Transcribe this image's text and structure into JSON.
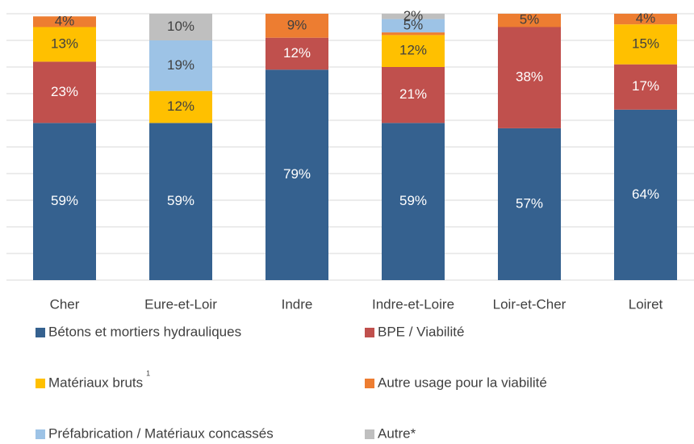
{
  "chart_data": {
    "type": "stacked_bar",
    "categories": [
      "Cher",
      "Eure-et-Loir",
      "Indre",
      "Indre-et-Loire",
      "Loir-et-Cher",
      "Loiret"
    ],
    "series": [
      {
        "name": "Bétons et mortiers hydrauliques",
        "color": "#35618f",
        "values": [
          59,
          59,
          79,
          59,
          57,
          64
        ],
        "value_labels": [
          "59%",
          "59%",
          "79%",
          "59%",
          "57%",
          "64%"
        ]
      },
      {
        "name": "BPE / Viabilité",
        "color": "#c0504d",
        "values": [
          23,
          null,
          12,
          21,
          38,
          17
        ],
        "value_labels": [
          "23%",
          null,
          "12%",
          "21%",
          "38%",
          "17%"
        ]
      },
      {
        "name": "Matériaux bruts",
        "footnote_mark": "1",
        "color": "#ffc000",
        "values": [
          13,
          12,
          null,
          12,
          null,
          15
        ],
        "value_labels": [
          "13%",
          "12%",
          null,
          "12%",
          null,
          "15%"
        ]
      },
      {
        "name": "Autre usage pour la viabilité",
        "color": "#ed7d31",
        "values": [
          4,
          null,
          9,
          1,
          5,
          4
        ],
        "value_labels": [
          "4%",
          null,
          "9%",
          null,
          "5%",
          "4%"
        ]
      },
      {
        "name": "Préfabrication / Matériaux concassés",
        "color": "#9dc3e6",
        "values": [
          null,
          19,
          null,
          5,
          null,
          null
        ],
        "value_labels": [
          null,
          "19%",
          null,
          "5%",
          null,
          null
        ]
      },
      {
        "name": "Autre*",
        "color": "#bfbfbf",
        "values": [
          null,
          10,
          null,
          2,
          null,
          null
        ],
        "value_labels": [
          null,
          "10%",
          null,
          "2%",
          null,
          null
        ]
      }
    ],
    "ylim": [
      0,
      100
    ],
    "yticks": [
      0,
      10,
      20,
      30,
      40,
      50,
      60,
      70,
      80,
      90,
      100
    ],
    "grid": true
  }
}
